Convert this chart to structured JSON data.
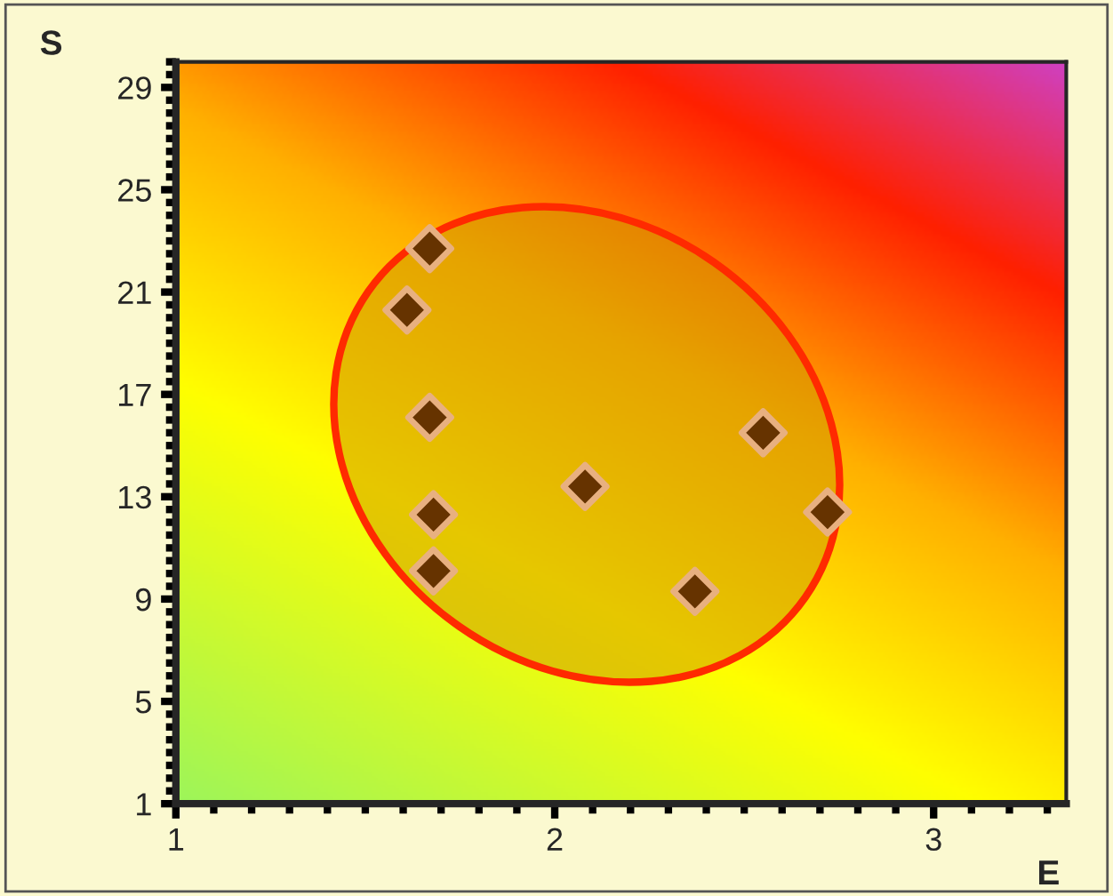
{
  "chart_data": {
    "type": "scatter",
    "xlabel": "E",
    "ylabel": "S",
    "x": [
      1.67,
      1.61,
      1.67,
      1.68,
      1.68,
      2.08,
      2.37,
      2.55,
      2.72
    ],
    "series": [
      {
        "color": "#663300",
        "values": [
          22.7,
          20.3,
          16.1,
          12.3,
          10.1,
          13.4,
          9.3,
          15.5,
          12.4
        ]
      }
    ],
    "marker": "diamond",
    "xlim": [
      1,
      3.35
    ],
    "ylim": [
      1,
      30
    ],
    "xticks": [
      1,
      2,
      3
    ],
    "yticks": [
      1,
      5,
      9,
      13,
      17,
      21,
      25,
      29
    ],
    "grid": false,
    "legend": false
  }
}
